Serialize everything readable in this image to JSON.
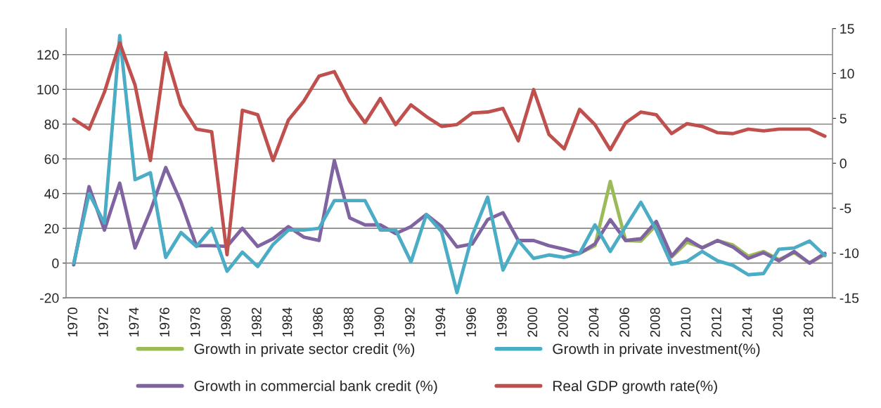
{
  "chart_data": {
    "type": "line",
    "x": [
      1970,
      1971,
      1972,
      1973,
      1974,
      1975,
      1976,
      1977,
      1978,
      1979,
      1980,
      1981,
      1982,
      1983,
      1984,
      1985,
      1986,
      1987,
      1988,
      1989,
      1990,
      1991,
      1992,
      1993,
      1994,
      1995,
      1996,
      1997,
      1998,
      1999,
      2000,
      2001,
      2002,
      2003,
      2004,
      2005,
      2006,
      2007,
      2008,
      2009,
      2010,
      2011,
      2012,
      2013,
      2014,
      2015,
      2016,
      2017,
      2018,
      2019
    ],
    "series": [
      {
        "name": "Growth in private sector credit (%)",
        "color": "#9bbb59",
        "values": [
          null,
          null,
          null,
          null,
          null,
          null,
          null,
          null,
          null,
          null,
          null,
          null,
          null,
          null,
          null,
          null,
          null,
          null,
          null,
          null,
          null,
          null,
          null,
          null,
          null,
          null,
          null,
          null,
          null,
          null,
          null,
          null,
          null,
          5.6,
          10,
          47,
          13,
          12.7,
          22,
          3.5,
          12,
          9,
          13,
          10.4,
          4,
          6.7,
          2,
          6,
          0,
          5
        ]
      },
      {
        "name": "Growth in commercial bank credit (%)",
        "color": "#8064a2",
        "values": [
          -1,
          44,
          19,
          46,
          8.7,
          30,
          55,
          35,
          10,
          10,
          9.6,
          20,
          9.6,
          14,
          21,
          15,
          13,
          59,
          26,
          22,
          22,
          17,
          21,
          28,
          21,
          9.3,
          11,
          25,
          29,
          13,
          13,
          10,
          8,
          5.6,
          11,
          25,
          13,
          14,
          24,
          4,
          14,
          8.7,
          13,
          9.3,
          2.7,
          6,
          1.3,
          6.7,
          0,
          5.6
        ]
      },
      {
        "name": "Growth in private investment(%)",
        "color": "#4bacc6",
        "values": [
          0,
          40,
          23,
          131,
          48,
          52,
          3.3,
          17.6,
          9.6,
          20,
          -4.7,
          6.3,
          -2,
          10.7,
          19,
          19,
          20,
          36,
          36,
          36,
          19,
          19,
          0.7,
          28,
          18,
          -17,
          16,
          38,
          -4,
          13,
          2.7,
          4.7,
          3.3,
          5.6,
          22,
          6.7,
          21,
          35,
          19,
          -0.7,
          1,
          6.7,
          1.3,
          -1.3,
          -6.7,
          -6,
          8,
          8.7,
          12.7,
          4.3
        ]
      },
      {
        "name": "Real GDP growth rate(%)",
        "color": "#c0504d",
        "axis": "y2",
        "values": [
          4.9,
          3.8,
          7.9,
          13.4,
          8.7,
          0.3,
          12.3,
          6.5,
          3.8,
          3.5,
          -10.2,
          5.9,
          5.4,
          0.3,
          4.8,
          6.9,
          9.7,
          10.2,
          6.9,
          4.5,
          7.2,
          4.3,
          6.5,
          5.2,
          4.1,
          4.3,
          5.6,
          5.7,
          6.1,
          2.5,
          8.2,
          3.2,
          1.6,
          6.0,
          4.3,
          1.5,
          4.5,
          5.7,
          5.4,
          3.3,
          4.4,
          4.1,
          3.4,
          3.3,
          3.8,
          3.6,
          3.8,
          3.8,
          3.8,
          3.0
        ]
      }
    ],
    "xlim": [
      1969.5,
      2019.5
    ],
    "xticks": [
      1970,
      1972,
      1974,
      1976,
      1978,
      1980,
      1982,
      1984,
      1986,
      1988,
      1990,
      1992,
      1994,
      1996,
      1998,
      2000,
      2002,
      2004,
      2006,
      2008,
      2010,
      2012,
      2014,
      2016,
      2018
    ],
    "ylim": [
      -20,
      135
    ],
    "yticks": [
      -20,
      0,
      20,
      40,
      60,
      80,
      100,
      120
    ],
    "y2lim": [
      -15,
      15
    ],
    "y2ticks": [
      -15,
      -10,
      -5,
      0,
      5,
      10,
      15
    ],
    "grid": "y",
    "legend": "bottom",
    "line_style": "solid",
    "marker": "none"
  }
}
